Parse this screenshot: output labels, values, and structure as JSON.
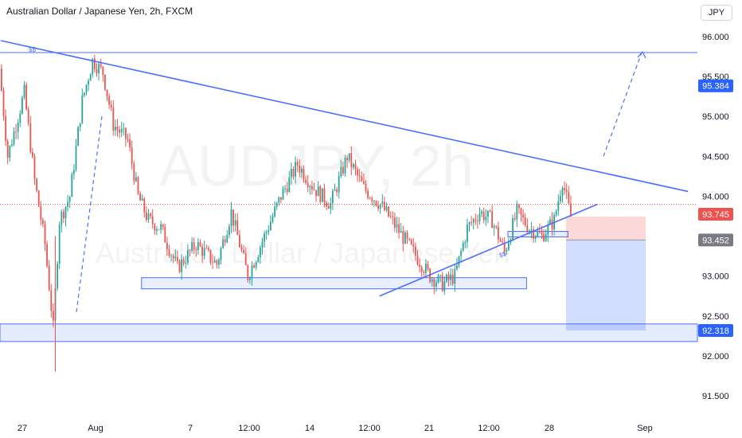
{
  "header": {
    "title": "Australian Dollar / Japanese Yen, 2h, FXCM",
    "currency_button": "JPY"
  },
  "watermark": {
    "symbol": "AUDJPY, 2h",
    "name": "Australian Dollar / Japanese Yen"
  },
  "colors": {
    "up": "#26a69a",
    "down": "#ef5350",
    "drawing": "#4c6fff",
    "current_price": "#ef5350",
    "level_badge": "#2962ff",
    "neutral_badge": "#787b86"
  },
  "chart_data": {
    "type": "candlestick",
    "symbol": "AUDJPY",
    "interval": "2h",
    "x_ticks": [
      "27",
      "Aug",
      "7",
      "12:00",
      "14",
      "12:00",
      "21",
      "12:00",
      "28",
      "Sep"
    ],
    "y_ticks": [
      "96.000",
      "95.500",
      "95.000",
      "94.500",
      "94.000",
      "93.000",
      "92.500",
      "92.000",
      "91.500"
    ],
    "ylim": [
      91.25,
      96.35
    ],
    "price_labels": [
      {
        "value": "95.384",
        "kind": "level"
      },
      {
        "value": "93.745",
        "kind": "current"
      },
      {
        "value": "93.452",
        "kind": "neutral"
      },
      {
        "value": "92.318",
        "kind": "level"
      }
    ],
    "annotations": [
      "$$",
      "$$"
    ],
    "drawings": {
      "horizontal_line": 95.8,
      "demand_zone": [
        92.18,
        92.4
      ],
      "support_zone": [
        92.91,
        92.97
      ],
      "short_position": {
        "entry": 93.452,
        "stop": 93.745,
        "target": 92.318
      },
      "descending_trendline": {
        "from": {
          "bar": 0,
          "price": 95.95
        },
        "to": {
          "bar": 332,
          "price": 94.06
        }
      },
      "ascending_trendline": {
        "from": {
          "bar": 183,
          "price": 92.75
        },
        "to": {
          "bar": 269,
          "price": 93.9
        }
      }
    },
    "key_points": [
      {
        "bar": 0,
        "price": 95.6
      },
      {
        "bar": 4,
        "price": 94.5
      },
      {
        "bar": 12,
        "price": 95.3
      },
      {
        "bar": 17,
        "price": 94.2
      },
      {
        "bar": 22,
        "price": 93.4
      },
      {
        "bar": 26,
        "price": 92.35
      },
      {
        "bar": 29,
        "price": 93.7
      },
      {
        "bar": 34,
        "price": 94.0
      },
      {
        "bar": 40,
        "price": 95.2
      },
      {
        "bar": 45,
        "price": 95.7
      },
      {
        "bar": 50,
        "price": 95.55
      },
      {
        "bar": 55,
        "price": 94.9
      },
      {
        "bar": 62,
        "price": 94.7
      },
      {
        "bar": 67,
        "price": 94.0
      },
      {
        "bar": 72,
        "price": 93.7
      },
      {
        "bar": 78,
        "price": 93.6
      },
      {
        "bar": 86,
        "price": 93.1
      },
      {
        "bar": 95,
        "price": 93.4
      },
      {
        "bar": 105,
        "price": 93.15
      },
      {
        "bar": 112,
        "price": 93.8
      },
      {
        "bar": 120,
        "price": 93.0
      },
      {
        "bar": 128,
        "price": 93.5
      },
      {
        "bar": 136,
        "price": 94.0
      },
      {
        "bar": 144,
        "price": 94.4
      },
      {
        "bar": 152,
        "price": 94.1
      },
      {
        "bar": 160,
        "price": 93.9
      },
      {
        "bar": 168,
        "price": 94.5
      },
      {
        "bar": 176,
        "price": 94.1
      },
      {
        "bar": 184,
        "price": 93.9
      },
      {
        "bar": 192,
        "price": 93.6
      },
      {
        "bar": 200,
        "price": 93.3
      },
      {
        "bar": 208,
        "price": 93.0
      },
      {
        "bar": 214,
        "price": 92.9
      },
      {
        "bar": 220,
        "price": 93.0
      },
      {
        "bar": 226,
        "price": 93.6
      },
      {
        "bar": 232,
        "price": 93.8
      },
      {
        "bar": 238,
        "price": 93.7
      },
      {
        "bar": 244,
        "price": 93.3
      },
      {
        "bar": 250,
        "price": 93.8
      },
      {
        "bar": 256,
        "price": 93.6
      },
      {
        "bar": 262,
        "price": 93.5
      },
      {
        "bar": 268,
        "price": 93.7
      },
      {
        "bar": 272,
        "price": 94.2
      },
      {
        "bar": 275,
        "price": 93.85
      }
    ]
  }
}
